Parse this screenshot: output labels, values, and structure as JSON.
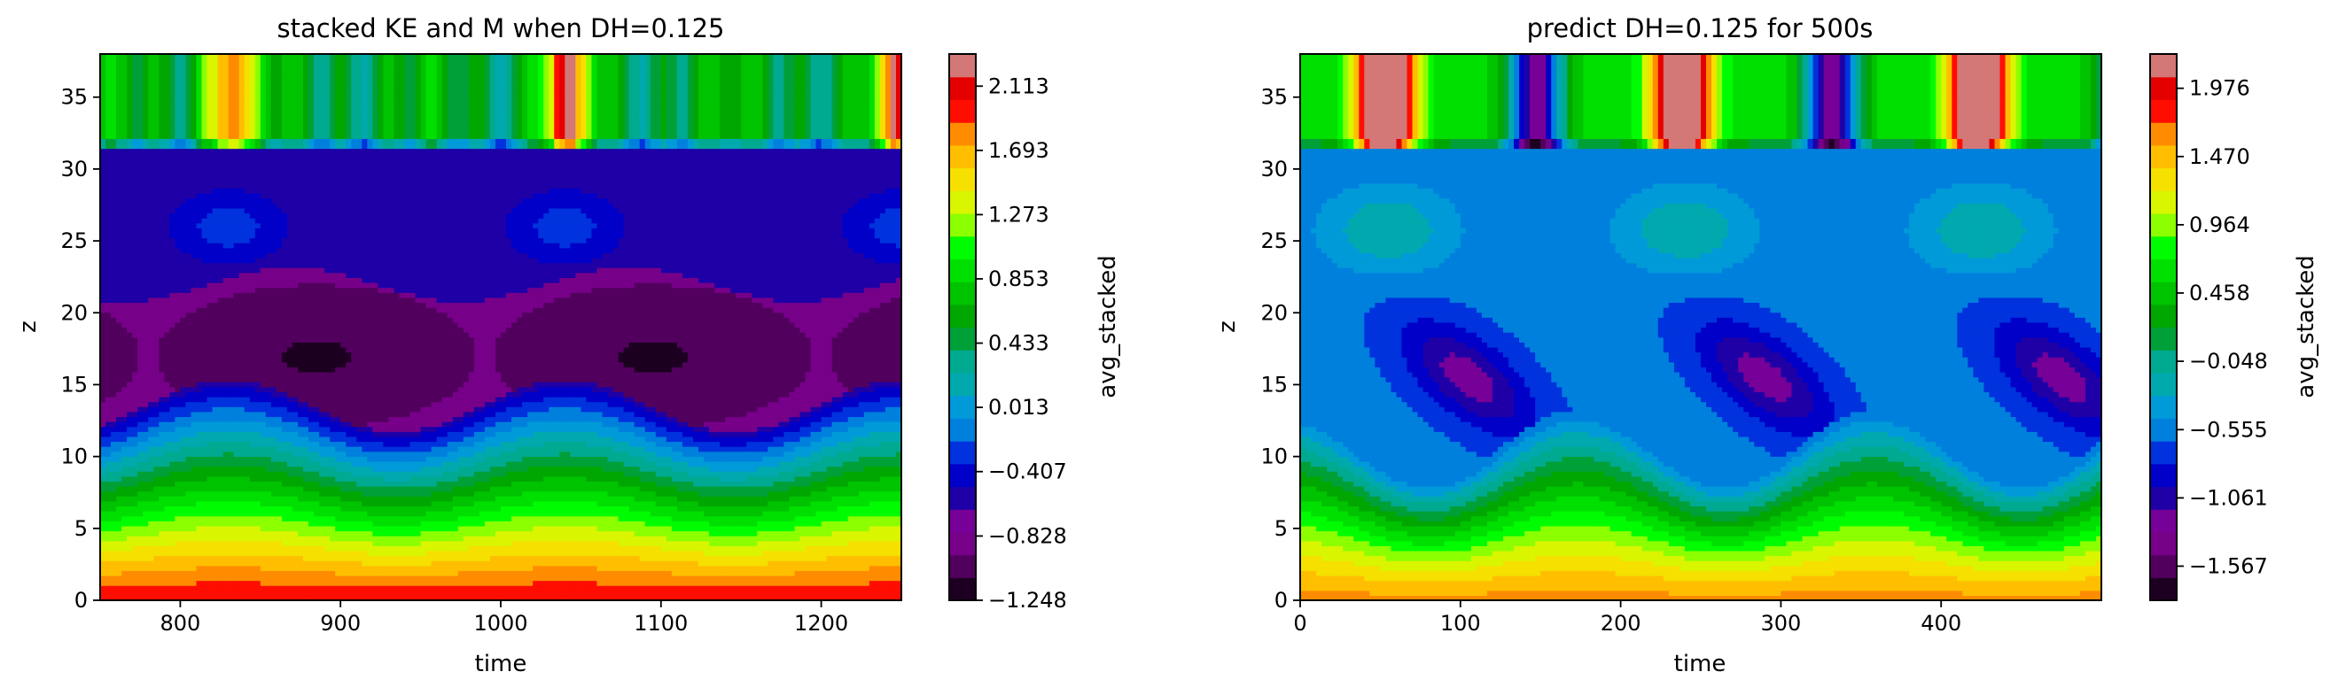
{
  "chart_data": [
    {
      "type": "heatmap",
      "title": "stacked KE and M when DH=0.125",
      "xlabel": "time",
      "ylabel": "z",
      "xlim": [
        750,
        1250
      ],
      "ylim": [
        0,
        38
      ],
      "xticks": [
        800,
        900,
        1000,
        1100,
        1200
      ],
      "yticks": [
        0,
        5,
        10,
        15,
        20,
        25,
        30,
        35
      ],
      "colorbar": {
        "label": "avg_stacked",
        "min": -1.248,
        "max": 2.323,
        "ticks": [
          "-1.248",
          "-0.828",
          "-0.407",
          "0.013",
          "0.433",
          "0.853",
          "1.273",
          "1.693",
          "2.113"
        ],
        "tick_values": [
          -1.248,
          -0.828,
          -0.407,
          0.013,
          0.433,
          0.853,
          1.273,
          1.693,
          2.113
        ]
      },
      "field_model": {
        "period": 210,
        "phase_ref": 830,
        "layers": [
          {
            "z_range": [
              0,
              15
            ],
            "description_values": "bottom ~2.0 decreasing upward to ~-0.6 near z=14, boundary oscillating"
          },
          {
            "z_range": [
              14,
              22
            ],
            "value": -0.9
          },
          {
            "z_range": [
              22,
              31
            ],
            "value": -0.5
          },
          {
            "z_range": [
              31,
              38
            ],
            "value": 0.6
          }
        ]
      }
    },
    {
      "type": "heatmap",
      "title": "predict DH=0.125 for 500s",
      "xlabel": "time",
      "ylabel": "z",
      "xlim": [
        0,
        500
      ],
      "ylim": [
        0,
        38
      ],
      "xticks": [
        0,
        100,
        200,
        300,
        400
      ],
      "yticks": [
        0,
        5,
        10,
        15,
        20,
        25,
        30,
        35
      ],
      "colorbar": {
        "label": "avg_stacked",
        "min": -1.82,
        "max": 2.23,
        "ticks": [
          "-1.567",
          "-1.061",
          "-0.555",
          "-0.048",
          "0.458",
          "0.964",
          "1.470",
          "1.976"
        ],
        "tick_values": [
          -1.567,
          -1.061,
          -0.555,
          -0.048,
          0.458,
          0.964,
          1.47,
          1.976
        ]
      },
      "field_model": {
        "period": 185,
        "phase_ref": 55,
        "layers": [
          {
            "z_range": [
              0,
              12
            ],
            "description_values": "bottom ~1.7 decreasing upward to ~-0.6, boundary oscillating"
          },
          {
            "z_range": [
              12,
              31
            ],
            "value": -0.6
          },
          {
            "z_range": [
              31,
              38
            ],
            "value": 0.5
          }
        ]
      }
    }
  ]
}
